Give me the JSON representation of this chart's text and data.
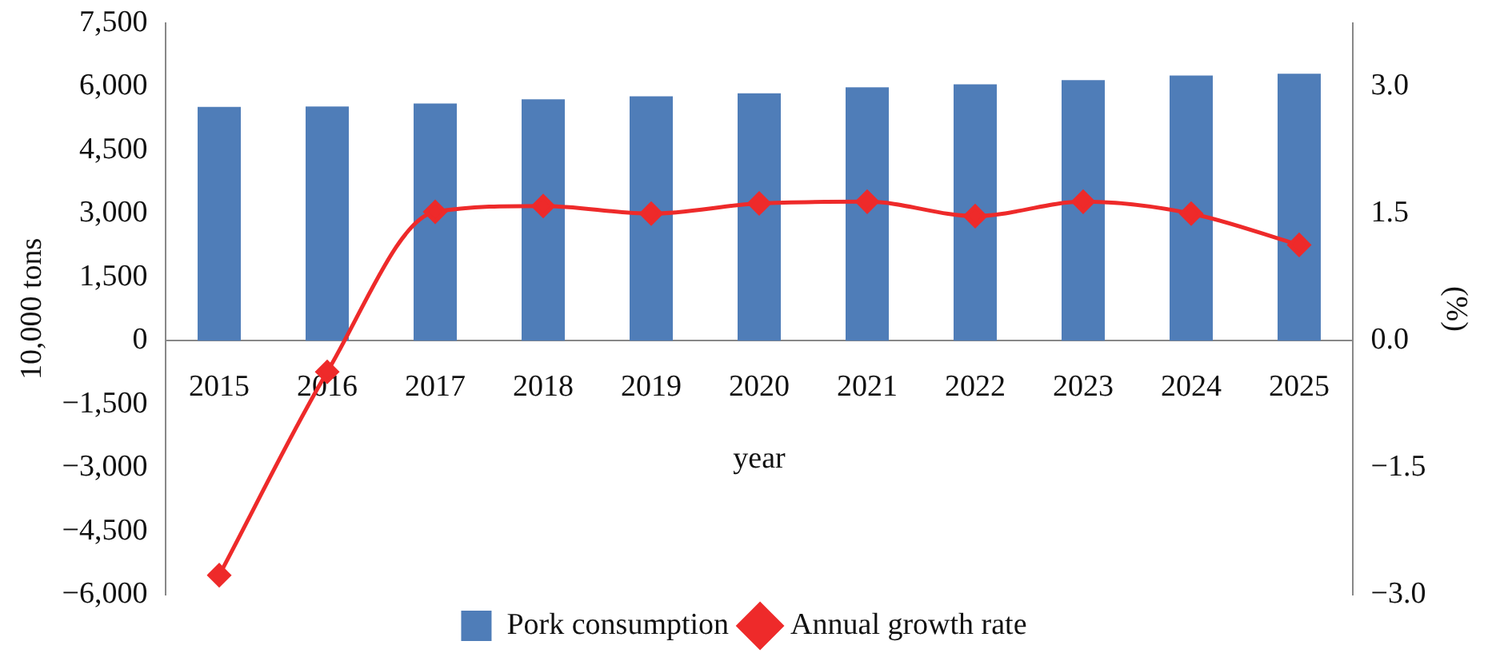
{
  "chart_data": {
    "type": "bar",
    "xlabel": "year",
    "ylabel": "10,000 tons",
    "y2label": "(%)",
    "categories": [
      "2015",
      "2016",
      "2017",
      "2018",
      "2019",
      "2020",
      "2021",
      "2022",
      "2023",
      "2024",
      "2025"
    ],
    "series": [
      {
        "name": "Pork consumption",
        "color": "#4f7db8",
        "values": [
          5520,
          5530,
          5600,
          5700,
          5770,
          5840,
          5980,
          6050,
          6150,
          6260,
          6300
        ]
      },
      {
        "name": "Annual growth rate",
        "type": "line",
        "axis": "y2",
        "color": "#ee2a2a",
        "marker": "diamond",
        "values": [
          -2.77,
          -0.37,
          1.52,
          1.59,
          1.5,
          1.62,
          1.64,
          1.47,
          1.64,
          1.5,
          1.13
        ]
      }
    ],
    "ylim": [
      -6000,
      7500
    ],
    "yticks": [
      {
        "value": -6000,
        "label": "−6,000"
      },
      {
        "value": -4500,
        "label": "−4,500"
      },
      {
        "value": -3000,
        "label": "−3,000"
      },
      {
        "value": -1500,
        "label": "−1,500"
      },
      0,
      {
        "value": 1500,
        "label": "1,500"
      },
      {
        "value": 3000,
        "label": "3,000"
      },
      {
        "value": 4500,
        "label": "4,500"
      },
      {
        "value": 6000,
        "label": "6,000"
      },
      {
        "value": 7500,
        "label": "7,500"
      }
    ],
    "y2lim": [
      -3,
      3.75
    ],
    "y2ticks": [
      {
        "value": -3,
        "label": "−3.0"
      },
      {
        "value": -1.5,
        "label": "−1.5"
      },
      {
        "value": 0,
        "label": "0.0"
      },
      {
        "value": 1.5,
        "label": "1.5"
      },
      {
        "value": 3,
        "label": "3.0"
      }
    ],
    "grid": false,
    "legend": "bottom"
  }
}
